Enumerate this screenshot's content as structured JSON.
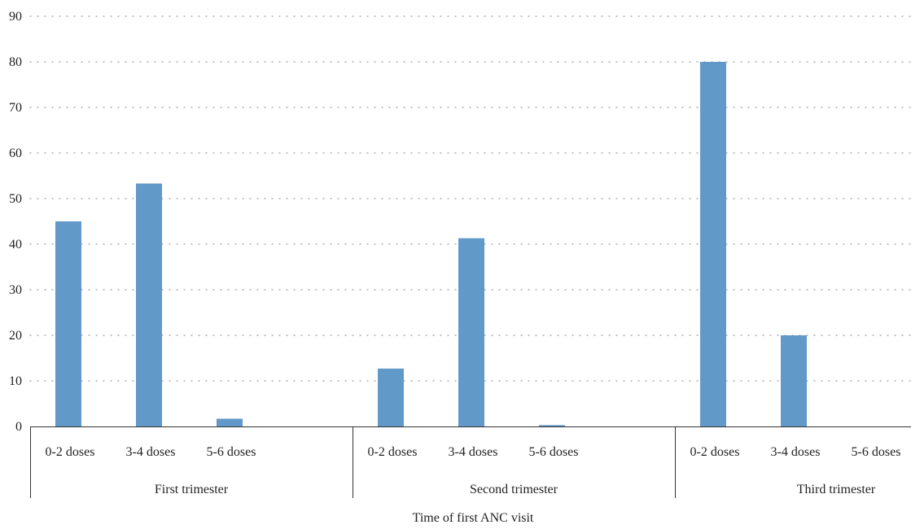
{
  "chart_data": {
    "type": "bar",
    "title": "",
    "xlabel": "Time of first ANC visit",
    "ylabel": "",
    "ylim": [
      0,
      90
    ],
    "yticks": [
      0,
      10,
      20,
      30,
      40,
      50,
      60,
      70,
      80,
      90
    ],
    "grid": "horizontal dotted",
    "legend": "none",
    "bar_color": "#6199c9",
    "groups": [
      {
        "label": "First trimester",
        "categories": [
          "0-2 doses",
          "3-4 doses",
          "5-6 doses"
        ],
        "values": [
          45,
          53.3,
          1.7
        ]
      },
      {
        "label": "Second trimester",
        "categories": [
          "0-2 doses",
          "3-4 doses",
          "5-6 doses"
        ],
        "values": [
          12.7,
          41.3,
          0.3
        ]
      },
      {
        "label": "Third trimester",
        "categories": [
          "0-2 doses",
          "3-4 doses",
          "5-6 doses"
        ],
        "values": [
          80,
          20,
          0
        ]
      }
    ]
  }
}
